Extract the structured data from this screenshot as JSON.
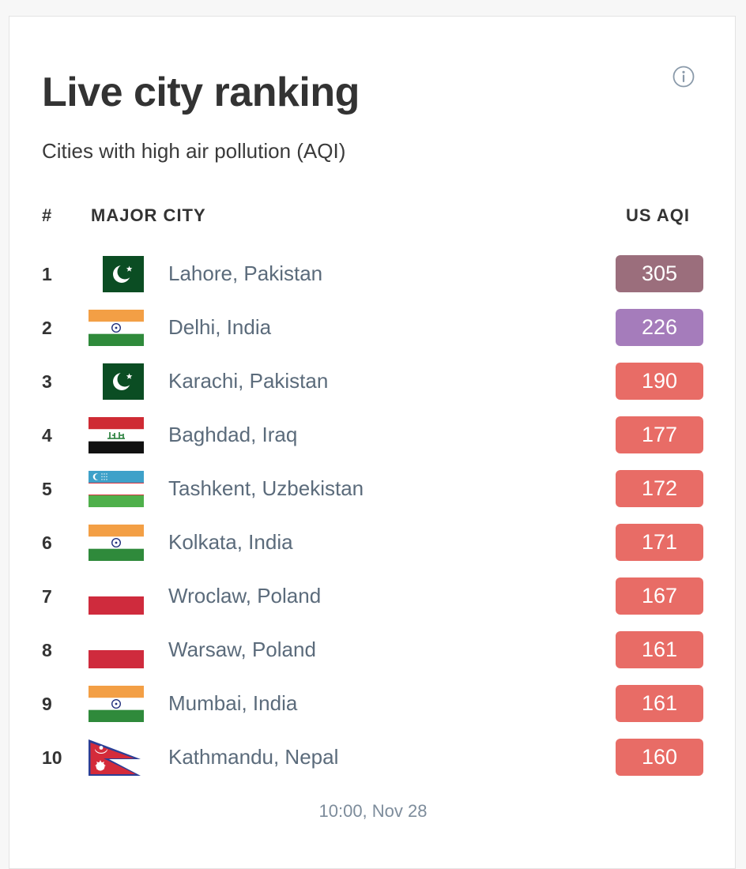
{
  "header": {
    "title": "Live city ranking",
    "subtitle": "Cities with high air pollution (AQI)",
    "info_icon": "info-circle-icon"
  },
  "columns": {
    "rank": "#",
    "city": "MAJOR CITY",
    "aqi": "US AQI"
  },
  "colors": {
    "hazardous": "#9b6e7c",
    "very_unhealthy": "#a57cbb",
    "unhealthy": "#e86c66"
  },
  "rows": [
    {
      "rank": "1",
      "city": "Lahore, Pakistan",
      "flag": "pakistan-flag-icon",
      "aqi": "305",
      "level": "hazardous"
    },
    {
      "rank": "2",
      "city": "Delhi, India",
      "flag": "india-flag-icon",
      "aqi": "226",
      "level": "very_unhealthy"
    },
    {
      "rank": "3",
      "city": "Karachi, Pakistan",
      "flag": "pakistan-flag-icon",
      "aqi": "190",
      "level": "unhealthy"
    },
    {
      "rank": "4",
      "city": "Baghdad, Iraq",
      "flag": "iraq-flag-icon",
      "aqi": "177",
      "level": "unhealthy"
    },
    {
      "rank": "5",
      "city": "Tashkent, Uzbekistan",
      "flag": "uzbekistan-flag-icon",
      "aqi": "172",
      "level": "unhealthy"
    },
    {
      "rank": "6",
      "city": "Kolkata, India",
      "flag": "india-flag-icon",
      "aqi": "171",
      "level": "unhealthy"
    },
    {
      "rank": "7",
      "city": "Wroclaw, Poland",
      "flag": "poland-flag-icon",
      "aqi": "167",
      "level": "unhealthy"
    },
    {
      "rank": "8",
      "city": "Warsaw, Poland",
      "flag": "poland-flag-icon",
      "aqi": "161",
      "level": "unhealthy"
    },
    {
      "rank": "9",
      "city": "Mumbai, India",
      "flag": "india-flag-icon",
      "aqi": "161",
      "level": "unhealthy"
    },
    {
      "rank": "10",
      "city": "Kathmandu, Nepal",
      "flag": "nepal-flag-icon",
      "aqi": "160",
      "level": "unhealthy"
    }
  ],
  "footer": {
    "timestamp": "10:00, Nov 28"
  }
}
